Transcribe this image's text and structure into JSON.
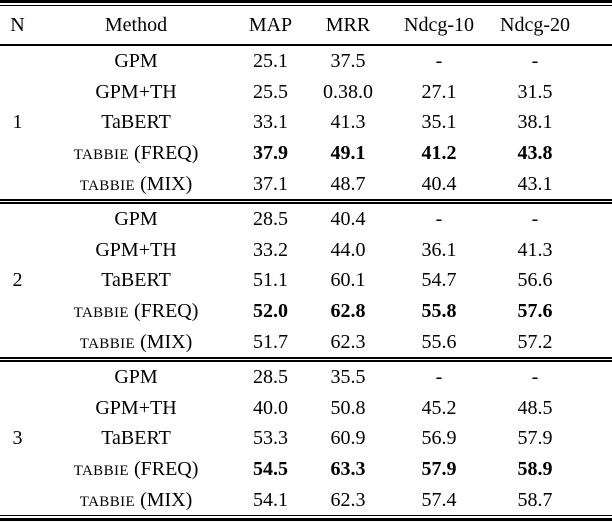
{
  "page": {
    "background": "#ffffff",
    "text_color": "#000000",
    "rule_color": "#000000"
  },
  "table": {
    "columns": [
      {
        "label": "N"
      },
      {
        "label": "Method"
      },
      {
        "label": "MAP"
      },
      {
        "label": "MRR"
      },
      {
        "label": "Ndcg-10"
      },
      {
        "label": "Ndcg-20"
      }
    ],
    "blocks": [
      {
        "n": "1",
        "rows": [
          {
            "method": [
              {
                "t": "GPM"
              }
            ],
            "bold": false,
            "values": [
              "25.1",
              "37.5",
              "-",
              "-"
            ]
          },
          {
            "method": [
              {
                "t": "GPM+TH"
              }
            ],
            "bold": false,
            "values": [
              "25.5",
              "0.38.0",
              "27.1",
              "31.5"
            ]
          },
          {
            "method": [
              {
                "t": "TaBERT"
              }
            ],
            "bold": false,
            "values": [
              "33.1",
              "41.3",
              "35.1",
              "38.1"
            ]
          },
          {
            "method": [
              {
                "t": "TABBIE",
                "sc": true
              },
              {
                "t": " (FREQ)"
              }
            ],
            "bold": true,
            "values": [
              "37.9",
              "49.1",
              "41.2",
              "43.8"
            ]
          },
          {
            "method": [
              {
                "t": "TABBIE",
                "sc": true
              },
              {
                "t": " (MIX)"
              }
            ],
            "bold": false,
            "values": [
              "37.1",
              "48.7",
              "40.4",
              "43.1"
            ]
          }
        ]
      },
      {
        "n": "2",
        "rows": [
          {
            "method": [
              {
                "t": "GPM"
              }
            ],
            "bold": false,
            "values": [
              "28.5",
              "40.4",
              "-",
              "-"
            ]
          },
          {
            "method": [
              {
                "t": "GPM+TH"
              }
            ],
            "bold": false,
            "values": [
              "33.2",
              "44.0",
              "36.1",
              "41.3"
            ]
          },
          {
            "method": [
              {
                "t": "TaBERT"
              }
            ],
            "bold": false,
            "values": [
              "51.1",
              "60.1",
              "54.7",
              "56.6"
            ]
          },
          {
            "method": [
              {
                "t": "TABBIE",
                "sc": true
              },
              {
                "t": " (FREQ)"
              }
            ],
            "bold": true,
            "values": [
              "52.0",
              "62.8",
              "55.8",
              "57.6"
            ]
          },
          {
            "method": [
              {
                "t": "TABBIE",
                "sc": true
              },
              {
                "t": " (MIX)"
              }
            ],
            "bold": false,
            "values": [
              "51.7",
              "62.3",
              "55.6",
              "57.2"
            ]
          }
        ]
      },
      {
        "n": "3",
        "rows": [
          {
            "method": [
              {
                "t": "GPM"
              }
            ],
            "bold": false,
            "values": [
              "28.5",
              "35.5",
              "-",
              "-"
            ]
          },
          {
            "method": [
              {
                "t": "GPM+TH"
              }
            ],
            "bold": false,
            "values": [
              "40.0",
              "50.8",
              "45.2",
              "48.5"
            ]
          },
          {
            "method": [
              {
                "t": "TaBERT"
              }
            ],
            "bold": false,
            "values": [
              "53.3",
              "60.9",
              "56.9",
              "57.9"
            ]
          },
          {
            "method": [
              {
                "t": "TABBIE",
                "sc": true
              },
              {
                "t": " (FREQ)"
              }
            ],
            "bold": true,
            "values": [
              "54.5",
              "63.3",
              "57.9",
              "58.9"
            ]
          },
          {
            "method": [
              {
                "t": "TABBIE",
                "sc": true
              },
              {
                "t": " (MIX)"
              }
            ],
            "bold": false,
            "values": [
              "54.1",
              "62.3",
              "57.4",
              "58.7"
            ]
          }
        ]
      }
    ]
  }
}
